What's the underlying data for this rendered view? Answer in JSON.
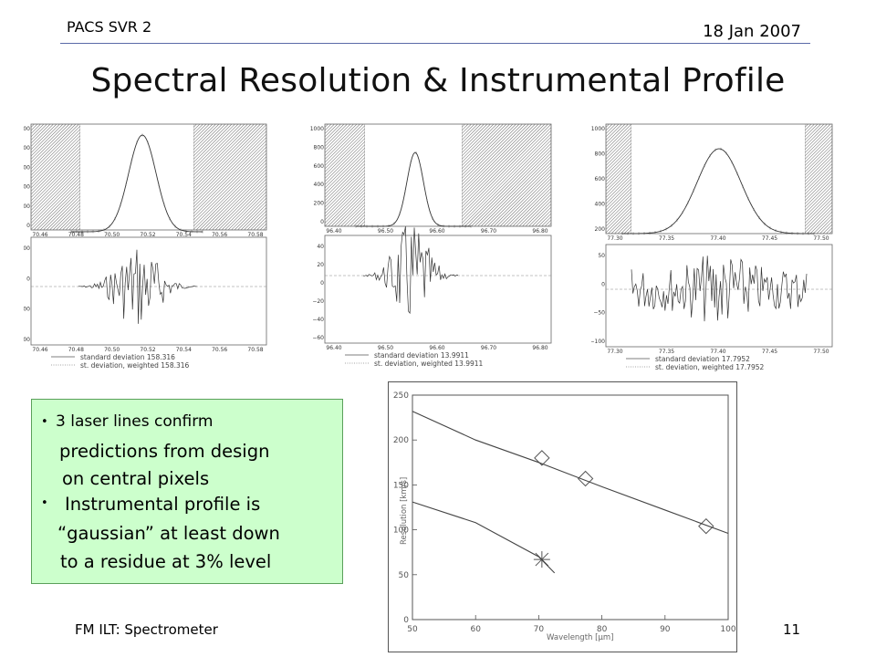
{
  "header": {
    "left": "PACS SVR 2",
    "right": "18 Jan 2007"
  },
  "title": "Spectral Resolution & Instrumental Profile",
  "footer": {
    "left": "FM ILT: Spectrometer",
    "page": "11"
  },
  "bullets": {
    "b1_l1": "3 laser lines confirm",
    "b1_l2": "predictions from design",
    "b1_l3": "on central pixels",
    "b2_l1": "Instrumental profile is",
    "b2_l2": "“gaussian” at least down",
    "b2_l3": "to a residue at 3% level"
  },
  "profile_panels": [
    {
      "center": 70.52,
      "upper_ticks_y": [
        "10000",
        "8000",
        "6000",
        "4000",
        "2000",
        "0"
      ],
      "lower_ticks_y": [
        "500",
        "0",
        "−500",
        "−1000"
      ],
      "ticks_x": [
        "70.46",
        "70.48",
        "70.50",
        "70.52",
        "70.54",
        "70.56",
        "70.58"
      ],
      "legend_std": "standard deviation 158.316",
      "legend_weighted": "st. deviation, weighted  158.316"
    },
    {
      "center": 96.53,
      "upper_ticks_y": [
        "1000",
        "800",
        "600",
        "400",
        "200",
        "0"
      ],
      "lower_ticks_y": [
        "40",
        "20",
        "0",
        "−20",
        "−40",
        "−60"
      ],
      "ticks_x": [
        "96.40",
        "96.50",
        "96.60",
        "96.70",
        "96.80"
      ],
      "legend_std": "standard deviation 13.9911",
      "legend_weighted": "st. deviation, weighted  13.9911"
    },
    {
      "center": 77.4,
      "upper_ticks_y": [
        "1000",
        "800",
        "600",
        "400",
        "200"
      ],
      "lower_ticks_y": [
        "50",
        "0",
        "−50",
        "−100"
      ],
      "ticks_x": [
        "77.30",
        "77.35",
        "77.40",
        "77.45",
        "77.50"
      ],
      "legend_std": "standard deviation 17.7952",
      "legend_weighted": "st. deviation, weighted  17.7952"
    }
  ],
  "chart_data": {
    "type": "scatter",
    "title": "",
    "xlabel": "Wavelength [μm]",
    "ylabel": "Resolution [km/s]",
    "xlim": [
      50,
      100
    ],
    "ylim": [
      0,
      250
    ],
    "x_ticks": [
      50,
      60,
      70,
      80,
      90,
      100
    ],
    "y_ticks": [
      0,
      50,
      100,
      150,
      200,
      250
    ],
    "series": [
      {
        "marker": "diamond",
        "points": [
          [
            70.5,
            180
          ],
          [
            77.4,
            157
          ],
          [
            96.5,
            104
          ]
        ]
      },
      {
        "marker": "asterisk",
        "points": [
          [
            70.5,
            67
          ]
        ]
      },
      {
        "line": [
          [
            50,
            232
          ],
          [
            60,
            200
          ],
          [
            70,
            175
          ],
          [
            80,
            148
          ],
          [
            90,
            122
          ],
          [
            100,
            96
          ]
        ]
      },
      {
        "line": [
          [
            50,
            131
          ],
          [
            60,
            108
          ],
          [
            70,
            70
          ],
          [
            72.5,
            52
          ]
        ]
      }
    ]
  }
}
